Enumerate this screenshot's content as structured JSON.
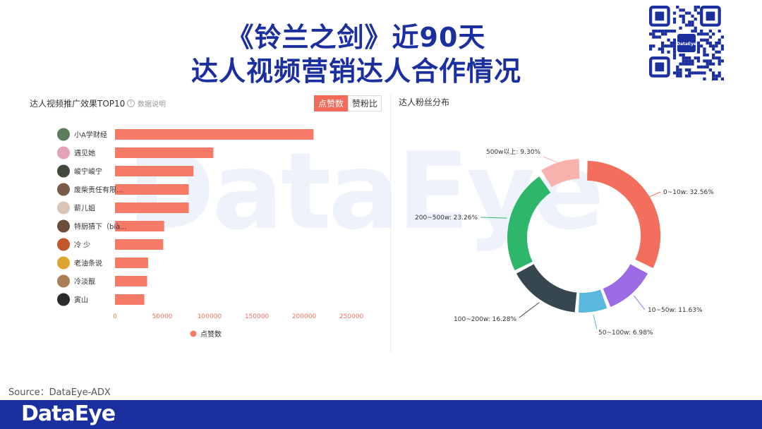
{
  "header": {
    "title_line1": "《铃兰之剑》近90天",
    "title_line2": "达人视频营销达人合作情况"
  },
  "left_panel": {
    "title": "达人视频推广效果TOP10",
    "help_icon": "?",
    "help_text": "数据说明",
    "toggle": [
      "点赞数",
      "赞粉比"
    ],
    "legend_label": "点赞数"
  },
  "right_panel": {
    "title": "达人粉丝分布"
  },
  "chart_data": [
    {
      "type": "bar",
      "orientation": "horizontal",
      "categories": [
        "小A学财经",
        "遇见她",
        "峻宁峻宁",
        "废柴责任有限...",
        "薪儿姐",
        "特厨猜下（bià...",
        "冷 少",
        "老油条说",
        "冷淡靓",
        "寅山"
      ],
      "values": [
        210000,
        104000,
        83000,
        78000,
        78000,
        52000,
        51000,
        35000,
        34000,
        31000
      ],
      "series": [
        {
          "name": "点赞数"
        }
      ],
      "xticks": [
        "0",
        "50000",
        "100000",
        "150000",
        "200000",
        "250000"
      ],
      "xlim": [
        0,
        250000
      ],
      "color": "#f57a68"
    },
    {
      "type": "pie",
      "donut": true,
      "slices": [
        {
          "label": "0~10w: 32.56%",
          "value": 32.56,
          "color": "#f46e5e"
        },
        {
          "label": "10~50w: 11.63%",
          "value": 11.63,
          "color": "#9a6be3"
        },
        {
          "label": "50~100w: 6.98%",
          "value": 6.98,
          "color": "#5ab8dd"
        },
        {
          "label": "100~200w: 16.28%",
          "value": 16.28,
          "color": "#37474f"
        },
        {
          "label": "200~500w: 23.26%",
          "value": 23.26,
          "color": "#2eb76a"
        },
        {
          "label": "500w以上: 9.30%",
          "value": 9.3,
          "color": "#f8b1ac"
        }
      ]
    }
  ],
  "watermark": "DataEye",
  "source": "Source：DataEye-ADX",
  "footer_logo": "DataEye",
  "qr_logo": "DataEye"
}
